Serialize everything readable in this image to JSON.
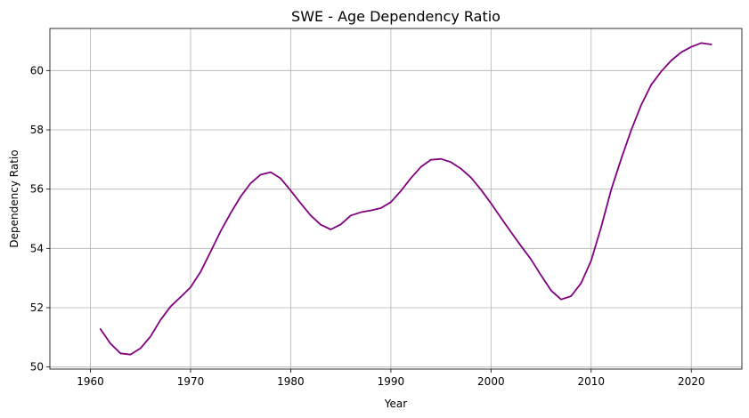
{
  "chart_data": {
    "type": "line",
    "title": "SWE - Age Dependency Ratio",
    "xlabel": "Year",
    "ylabel": "Dependency Ratio",
    "xlim": [
      1955.95,
      2025.05
    ],
    "ylim": [
      49.93,
      61.42
    ],
    "xticks": [
      1960,
      1970,
      1980,
      1990,
      2000,
      2010,
      2020
    ],
    "yticks": [
      50,
      52,
      54,
      56,
      58,
      60
    ],
    "grid": true,
    "series": [
      {
        "color": "#800080",
        "x": [
          1961,
          1962,
          1963,
          1964,
          1965,
          1966,
          1967,
          1968,
          1969,
          1970,
          1971,
          1972,
          1973,
          1974,
          1975,
          1976,
          1977,
          1978,
          1979,
          1980,
          1981,
          1982,
          1983,
          1984,
          1985,
          1986,
          1987,
          1988,
          1989,
          1990,
          1991,
          1992,
          1993,
          1994,
          1995,
          1996,
          1997,
          1998,
          1999,
          2000,
          2001,
          2002,
          2003,
          2004,
          2005,
          2006,
          2007,
          2008,
          2009,
          2010,
          2011,
          2012,
          2013,
          2014,
          2015,
          2016,
          2017,
          2018,
          2019,
          2020,
          2021,
          2022
        ],
        "y": [
          51.28,
          50.79,
          50.46,
          50.42,
          50.63,
          51.03,
          51.59,
          52.04,
          52.36,
          52.69,
          53.21,
          53.89,
          54.58,
          55.19,
          55.75,
          56.2,
          56.49,
          56.57,
          56.36,
          55.95,
          55.52,
          55.11,
          54.8,
          54.64,
          54.81,
          55.11,
          55.22,
          55.28,
          55.36,
          55.56,
          55.94,
          56.37,
          56.75,
          56.99,
          57.02,
          56.91,
          56.69,
          56.39,
          55.98,
          55.52,
          55.03,
          54.55,
          54.08,
          53.63,
          53.09,
          52.58,
          52.28,
          52.39,
          52.83,
          53.59,
          54.72,
          55.98,
          57.02,
          57.99,
          58.84,
          59.52,
          59.97,
          60.34,
          60.62,
          60.8,
          60.93,
          60.88
        ]
      }
    ]
  }
}
